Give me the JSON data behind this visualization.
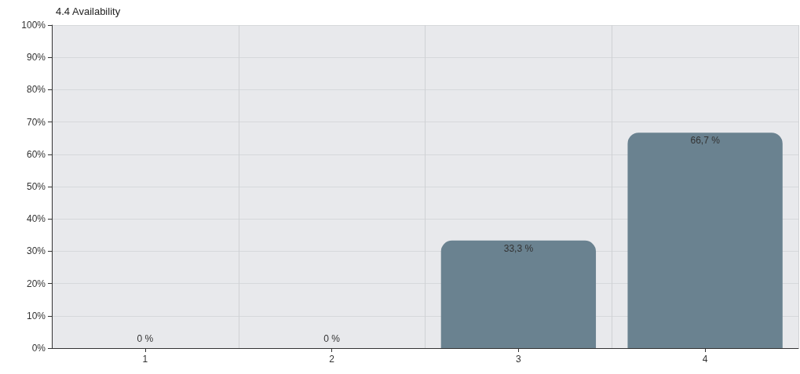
{
  "chart_data": {
    "type": "bar",
    "title": "4.4 Availability",
    "categories": [
      "1",
      "2",
      "3",
      "4"
    ],
    "values": [
      0,
      0,
      33.3,
      66.7
    ],
    "value_labels": [
      "0 %",
      "0 %",
      "33,3 %",
      "66,7 %"
    ],
    "color": "#6a8290",
    "ylim": [
      0,
      100
    ],
    "yticks": [
      {
        "value": 0,
        "label": "0%"
      },
      {
        "value": 10,
        "label": "10%"
      },
      {
        "value": 20,
        "label": "20%"
      },
      {
        "value": 30,
        "label": "30%"
      },
      {
        "value": 40,
        "label": "40%"
      },
      {
        "value": 50,
        "label": "50%"
      },
      {
        "value": 60,
        "label": "60%"
      },
      {
        "value": 70,
        "label": "70%"
      },
      {
        "value": 80,
        "label": "80%"
      },
      {
        "value": 90,
        "label": "90%"
      },
      {
        "value": 100,
        "label": "100%"
      }
    ],
    "grid": true
  }
}
